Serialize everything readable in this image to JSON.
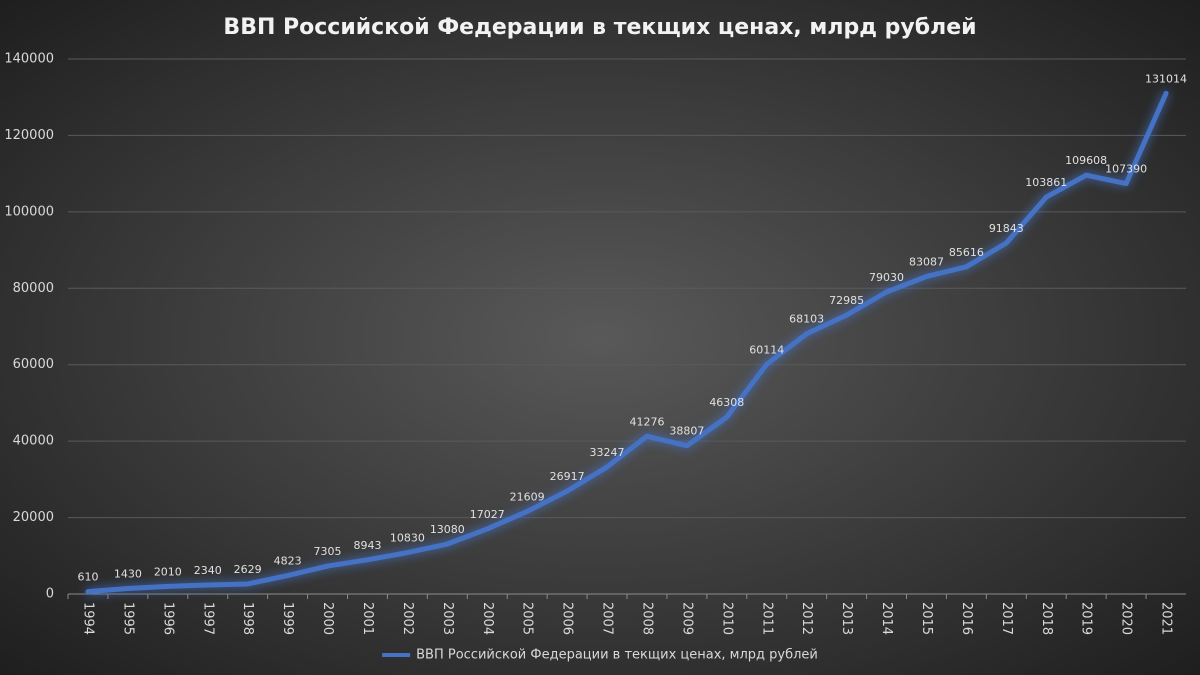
{
  "chart_data": {
    "type": "line",
    "title": "ВВП Российской Федерации в текщих ценах, млрд рублей",
    "categories": [
      "1994",
      "1995",
      "1996",
      "1997",
      "1998",
      "1999",
      "2000",
      "2001",
      "2002",
      "2003",
      "2004",
      "2005",
      "2006",
      "2007",
      "2008",
      "2009",
      "2010",
      "2011",
      "2012",
      "2013",
      "2014",
      "2015",
      "2016",
      "2017",
      "2018",
      "2019",
      "2020",
      "2021"
    ],
    "series": [
      {
        "name": "ВВП Российской Федерации в текщих ценах, млрд рублей",
        "color": "#4472c4",
        "values": [
          610,
          1430,
          2010,
          2340,
          2629,
          4823,
          7305,
          8943,
          10830,
          13080,
          17027,
          21609,
          26917,
          33247,
          41276,
          38807,
          46308,
          60114,
          68103,
          72985,
          79030,
          83087,
          85616,
          91843,
          103861,
          109608,
          107390,
          131014
        ]
      }
    ],
    "ylim": [
      0,
      140000
    ],
    "yticks": [
      0,
      20000,
      40000,
      60000,
      80000,
      100000,
      120000,
      140000
    ],
    "grid": true,
    "legend": "bottom"
  }
}
